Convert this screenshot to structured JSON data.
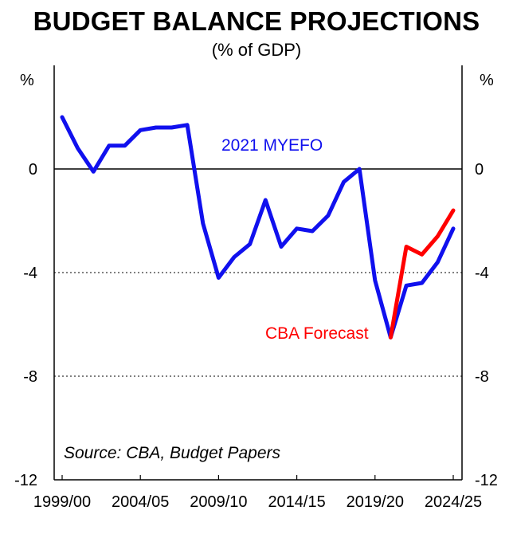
{
  "chart_data": {
    "type": "line",
    "title": "BUDGET BALANCE PROJECTIONS",
    "subtitle": "(% of GDP)",
    "ylabel_left": "%",
    "ylabel_right": "%",
    "ylim": [
      -12,
      4
    ],
    "yticks": [
      0,
      -4,
      -8,
      -12
    ],
    "ytick_labels": [
      "0",
      "-4",
      "-8",
      "-12"
    ],
    "xtick_labels": [
      "1999/00",
      "2004/05",
      "2009/10",
      "2014/15",
      "2019/20",
      "2024/25"
    ],
    "xtick_index": [
      0,
      5,
      10,
      15,
      20,
      25
    ],
    "x_count": 26,
    "gridlines_dotted": [
      -4,
      -8
    ],
    "series": [
      {
        "name": "2021 MYEFO",
        "color": "#1010ee",
        "start_index": 0,
        "values": [
          2.0,
          0.8,
          -0.1,
          0.9,
          0.9,
          1.5,
          1.6,
          1.6,
          1.7,
          -2.1,
          -4.2,
          -3.4,
          -2.9,
          -1.2,
          -3.0,
          -2.3,
          -2.4,
          -1.8,
          -0.5,
          0.0,
          -4.3,
          -6.5,
          -4.5,
          -4.4,
          -3.6,
          -2.3
        ]
      },
      {
        "name": "CBA Forecast",
        "color": "#ff0000",
        "start_index": 21,
        "values": [
          -6.5,
          -3.0,
          -3.3,
          -2.6,
          -1.6
        ]
      }
    ],
    "annotations": {
      "myefo_label": "2021 MYEFO",
      "cba_label": "CBA Forecast",
      "source": "Source: CBA, Budget Papers"
    }
  },
  "colors": {
    "myefo": "#1010ee",
    "cba": "#ff0000",
    "axis": "#000000",
    "grid": "#000000"
  }
}
